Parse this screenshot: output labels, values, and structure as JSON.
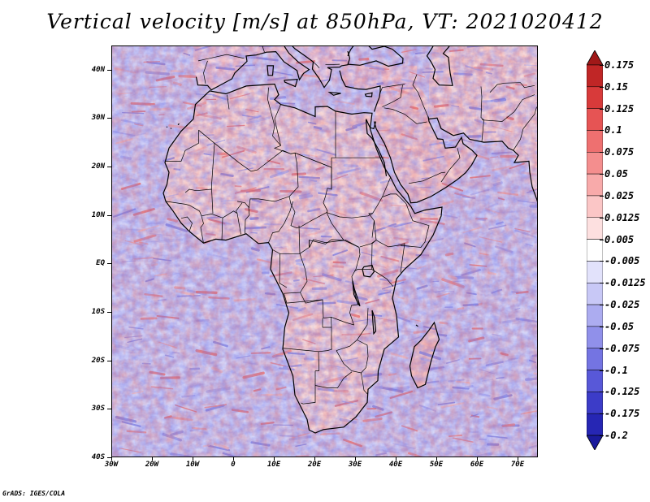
{
  "title": "Vertical velocity [m/s] at 850hPa, VT: 2021020412",
  "credit": "GrADS: IGES/COLA",
  "map": {
    "lon_range": [
      -30,
      75
    ],
    "lat_range": [
      -40,
      45
    ],
    "lat_ticks": [
      {
        "value": 40,
        "label": "40N"
      },
      {
        "value": 30,
        "label": "30N"
      },
      {
        "value": 20,
        "label": "20N"
      },
      {
        "value": 10,
        "label": "10N"
      },
      {
        "value": 0,
        "label": "EQ"
      },
      {
        "value": -10,
        "label": "10S"
      },
      {
        "value": -20,
        "label": "20S"
      },
      {
        "value": -30,
        "label": "30S"
      },
      {
        "value": -40,
        "label": "40S"
      }
    ],
    "lon_ticks": [
      {
        "value": -30,
        "label": "30W"
      },
      {
        "value": -20,
        "label": "20W"
      },
      {
        "value": -10,
        "label": "10W"
      },
      {
        "value": 0,
        "label": "0"
      },
      {
        "value": 10,
        "label": "10E"
      },
      {
        "value": 20,
        "label": "20E"
      },
      {
        "value": 30,
        "label": "30E"
      },
      {
        "value": 40,
        "label": "40E"
      },
      {
        "value": 50,
        "label": "50E"
      },
      {
        "value": 60,
        "label": "60E"
      },
      {
        "value": 70,
        "label": "70E"
      }
    ]
  },
  "colorbar": {
    "levels": [
      {
        "label": "0.175",
        "color": "#a01818"
      },
      {
        "label": "0.15",
        "color": "#c02626"
      },
      {
        "label": "0.125",
        "color": "#d83a3a"
      },
      {
        "label": "0.1",
        "color": "#e65454"
      },
      {
        "label": "0.075",
        "color": "#ee7070"
      },
      {
        "label": "0.05",
        "color": "#f48e8e"
      },
      {
        "label": "0.025",
        "color": "#f8aaaa"
      },
      {
        "label": "0.0125",
        "color": "#fbc6c6"
      },
      {
        "label": "0.005",
        "color": "#fde0e0"
      },
      {
        "label": "-0.005",
        "color": "#ffffff"
      },
      {
        "label": "-0.0125",
        "color": "#e2e2fb"
      },
      {
        "label": "-0.025",
        "color": "#c8c8f6"
      },
      {
        "label": "-0.05",
        "color": "#acacf0"
      },
      {
        "label": "-0.075",
        "color": "#9090ea"
      },
      {
        "label": "-0.1",
        "color": "#7474e2"
      },
      {
        "label": "-0.125",
        "color": "#5858d8"
      },
      {
        "label": "-0.175",
        "color": "#3c3cc8"
      },
      {
        "label": "-0.2",
        "color": "#2626b4"
      }
    ],
    "min_color": "#1a1a9c"
  },
  "colors": {
    "ocean_blue": "#c9c9f5",
    "land_red": "#f2b0b0",
    "coast": "#000000"
  }
}
